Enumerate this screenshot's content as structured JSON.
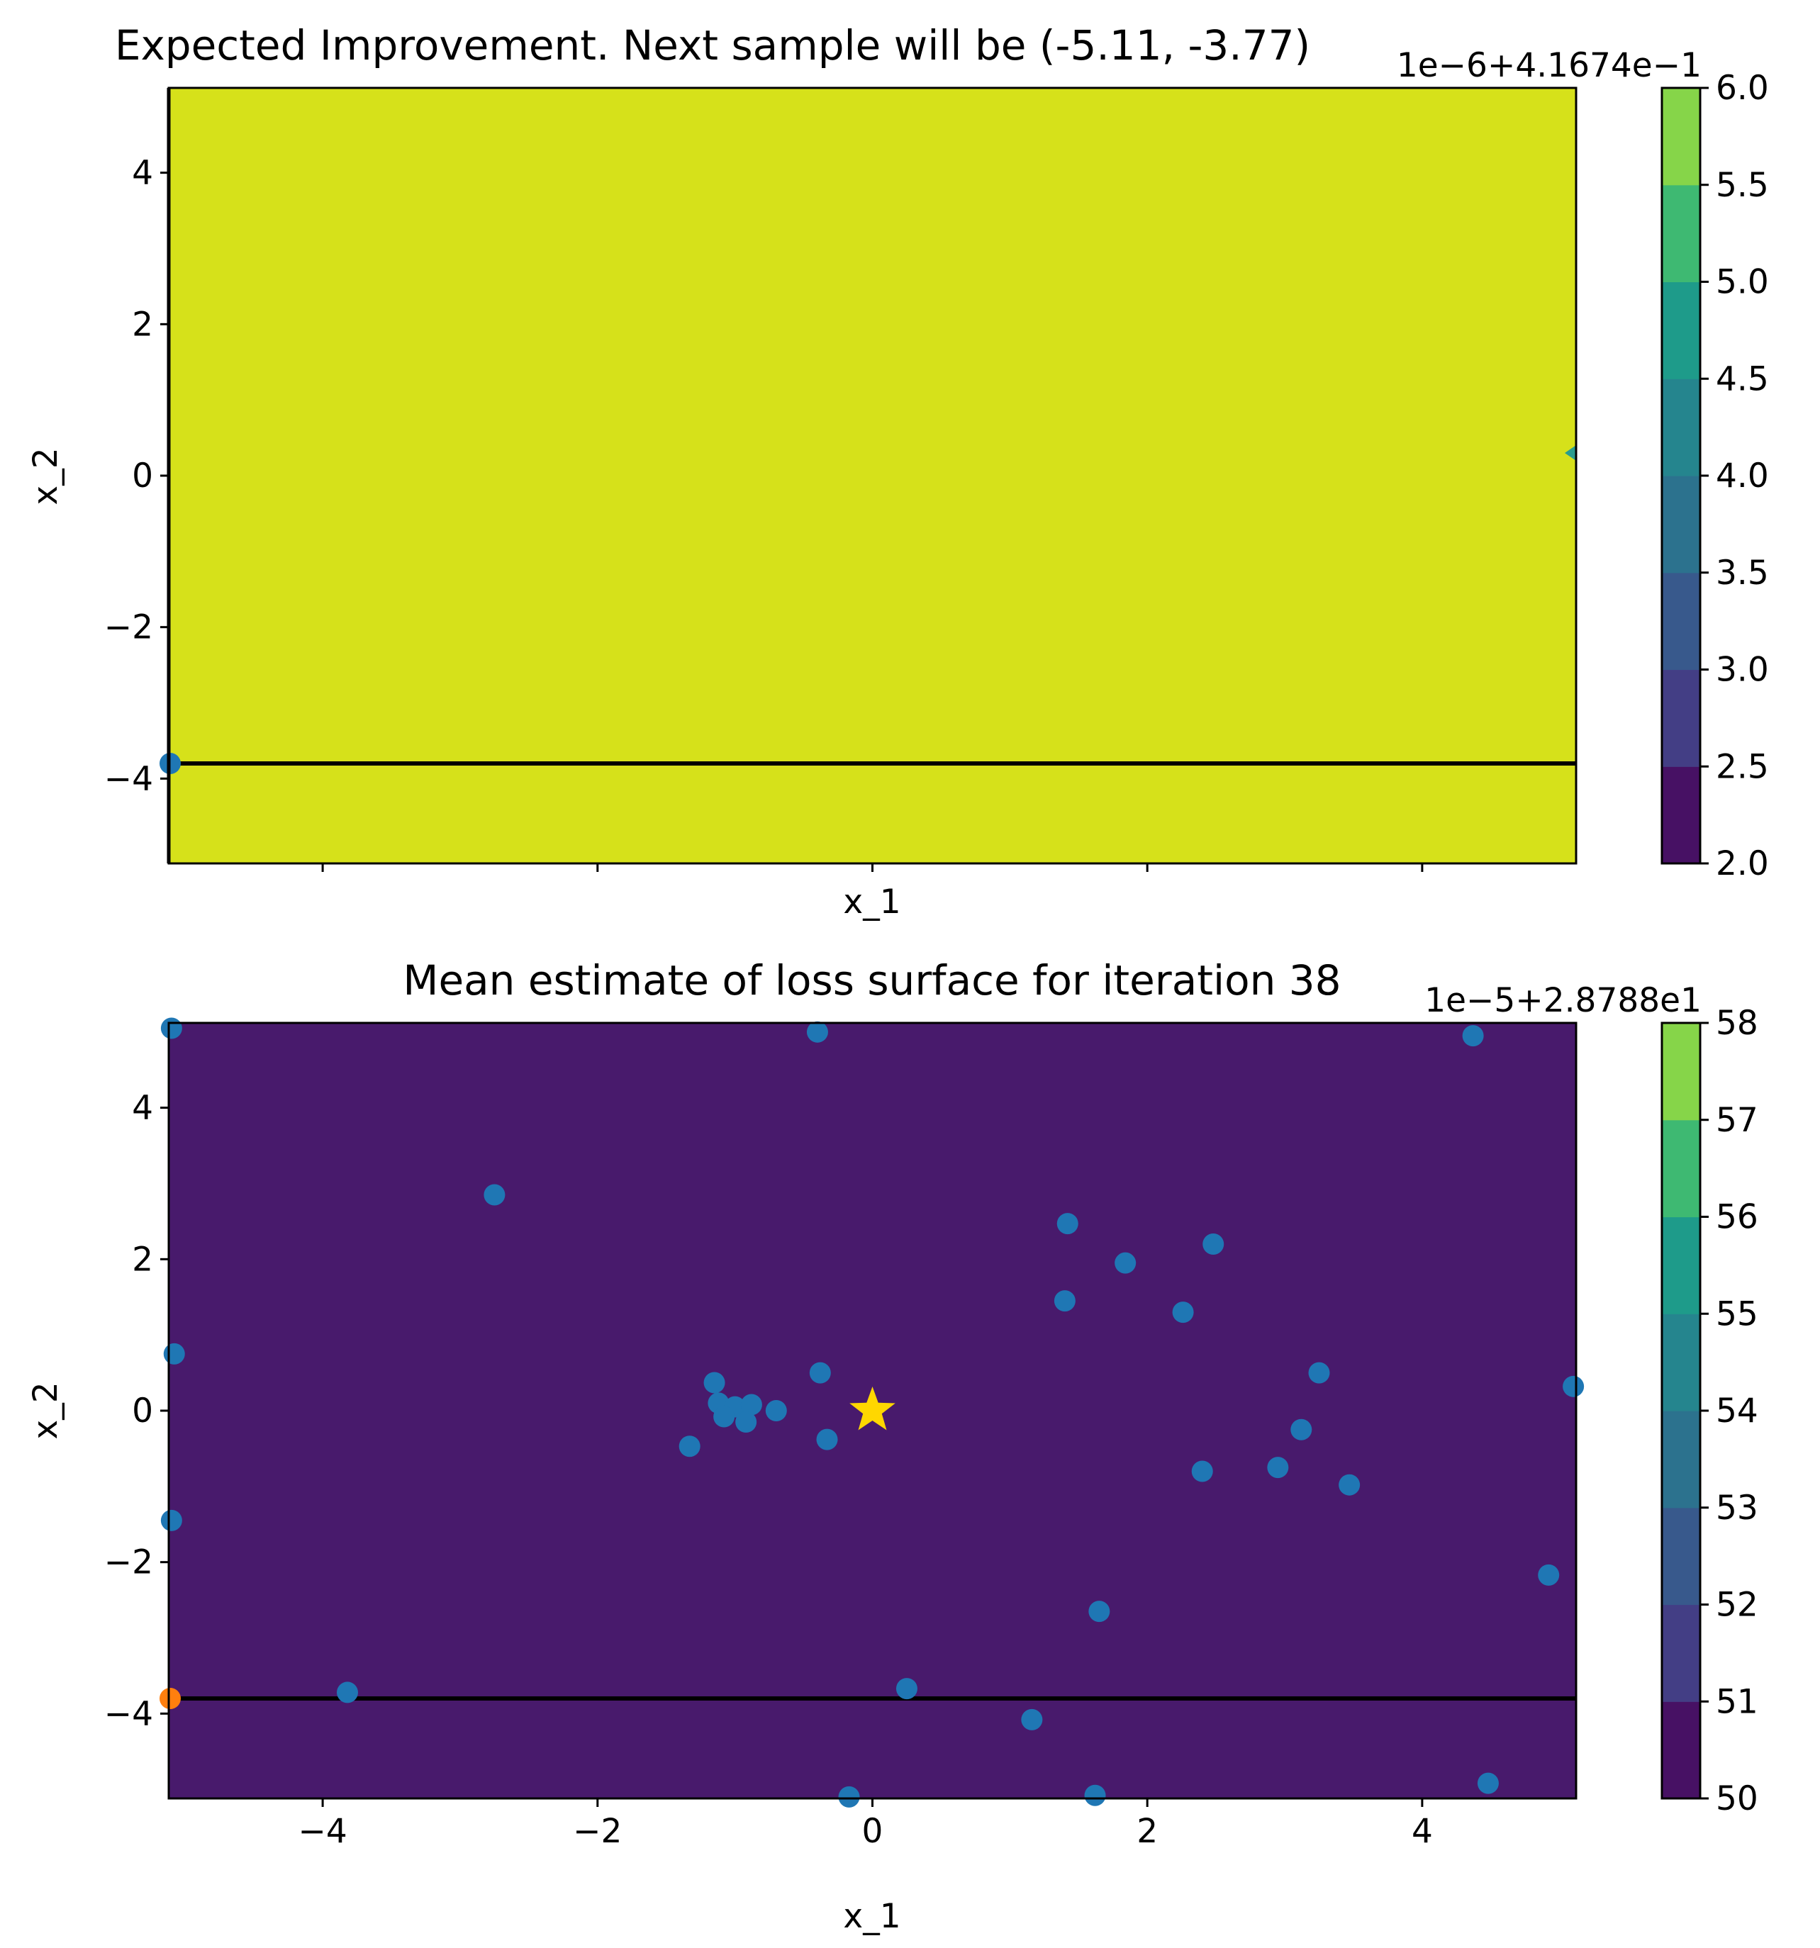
{
  "colors": {
    "viridis": [
      "#440154",
      "#482475",
      "#414487",
      "#355f8d",
      "#2a788e",
      "#21918c",
      "#22a884",
      "#44bf70",
      "#7ad151",
      "#bddf26",
      "#fde725"
    ],
    "ei_fill": "#d6e11a",
    "mean_fill": "#481a6c",
    "samples": "#1f77b4",
    "next_sample": "#ff7f0e",
    "optimum_star": "#ffd700",
    "hline": "#000000"
  },
  "chart_data": [
    {
      "type": "contour",
      "title": "Expected Improvement. Next sample will be (-5.11, -3.77)",
      "xlabel": "x_1",
      "ylabel": "x_2",
      "xlim": [
        -5.12,
        5.12
      ],
      "ylim": [
        -5.12,
        5.12
      ],
      "xticks": [
        -4,
        -2,
        0,
        2,
        4
      ],
      "xtick_labels_shown": false,
      "yticks": [
        -4,
        -2,
        0,
        2,
        4
      ],
      "ytick_labels": [
        "−4",
        "−2",
        "0",
        "2",
        "4"
      ],
      "hline_y": -3.77,
      "samples": [
        [
          -5.11,
          -3.77
        ]
      ],
      "edge_marker": [
        5.12,
        0.32
      ],
      "fill_level_index": 7,
      "colorbar": {
        "offset_label": "1e−6+4.1674e−1",
        "levels": [
          2.0,
          2.5,
          3.0,
          3.5,
          4.0,
          4.5,
          5.0,
          5.5,
          6.0
        ],
        "tick_labels": [
          "2.0",
          "2.5",
          "3.0",
          "3.5",
          "4.0",
          "4.5",
          "5.0",
          "5.5",
          "6.0"
        ],
        "band_colors": [
          "#471164",
          "#433e85",
          "#38598c",
          "#2c728e",
          "#25858e",
          "#1e9b8a",
          "#3eb972",
          "#86d549"
        ]
      }
    },
    {
      "type": "contour",
      "title": "Mean estimate of loss surface for iteration 38",
      "xlabel": "x_1",
      "ylabel": "x_2",
      "xlim": [
        -5.12,
        5.12
      ],
      "ylim": [
        -5.12,
        5.12
      ],
      "xticks": [
        -4,
        -2,
        0,
        2,
        4
      ],
      "xtick_labels": [
        "−4",
        "−2",
        "0",
        "2",
        "4"
      ],
      "yticks": [
        -4,
        -2,
        0,
        2,
        4
      ],
      "ytick_labels": [
        "−4",
        "−2",
        "0",
        "2",
        "4"
      ],
      "hline_y": -3.77,
      "optimum": [
        0,
        0
      ],
      "next_sample": [
        -5.11,
        -3.77
      ],
      "samples": [
        [
          -5.1,
          5.05
        ],
        [
          -0.4,
          5.0
        ],
        [
          4.37,
          4.95
        ],
        [
          -2.75,
          2.85
        ],
        [
          1.42,
          2.47
        ],
        [
          2.48,
          2.2
        ],
        [
          1.84,
          1.95
        ],
        [
          1.4,
          1.45
        ],
        [
          2.26,
          1.3
        ],
        [
          -5.08,
          0.75
        ],
        [
          -1.15,
          0.37
        ],
        [
          -0.38,
          0.5
        ],
        [
          3.25,
          0.5
        ],
        [
          5.1,
          0.32
        ],
        [
          -1.12,
          0.1
        ],
        [
          -1.0,
          0.05
        ],
        [
          -0.88,
          0.08
        ],
        [
          -1.08,
          -0.08
        ],
        [
          -0.7,
          0.0
        ],
        [
          -0.92,
          -0.15
        ],
        [
          -1.33,
          -0.47
        ],
        [
          -0.33,
          -0.38
        ],
        [
          3.12,
          -0.25
        ],
        [
          2.95,
          -0.75
        ],
        [
          2.4,
          -0.8
        ],
        [
          3.47,
          -0.98
        ],
        [
          -5.1,
          -1.45
        ],
        [
          4.92,
          -2.17
        ],
        [
          1.65,
          -2.65
        ],
        [
          -3.82,
          -3.72
        ],
        [
          0.25,
          -3.67
        ],
        [
          1.16,
          -4.08
        ],
        [
          -0.17,
          -5.1
        ],
        [
          1.62,
          -5.08
        ],
        [
          4.48,
          -4.92
        ]
      ],
      "fill_level_index": 0,
      "colorbar": {
        "offset_label": "1e−5+2.8788e1",
        "levels": [
          50,
          51,
          52,
          53,
          54,
          55,
          56,
          57,
          58
        ],
        "tick_labels": [
          "50",
          "51",
          "52",
          "53",
          "54",
          "55",
          "56",
          "57",
          "58"
        ],
        "band_colors": [
          "#471164",
          "#433e85",
          "#38598c",
          "#2c728e",
          "#25858e",
          "#1e9b8a",
          "#3eb972",
          "#86d549"
        ]
      }
    }
  ]
}
